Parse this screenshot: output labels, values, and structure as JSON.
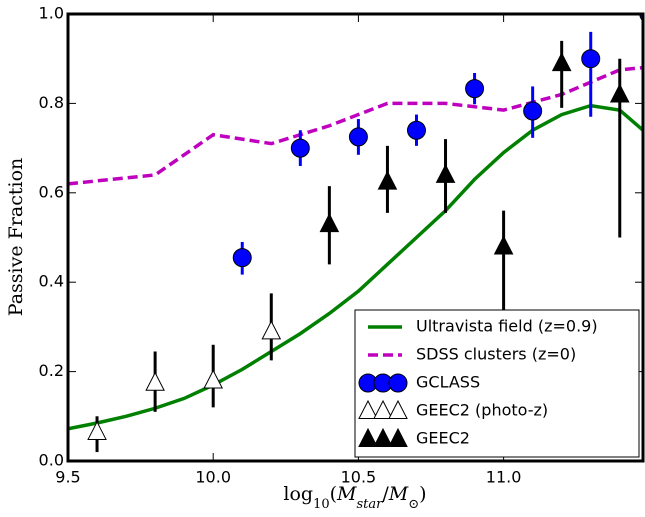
{
  "chart_data": {
    "type": "line",
    "xlabel": [
      "log",
      "10",
      "(",
      "M",
      "star",
      "/",
      "M",
      "⊙",
      ")"
    ],
    "ylabel": "Passive Fraction",
    "xlim": [
      9.5,
      11.48
    ],
    "ylim": [
      0,
      1.0
    ],
    "xticks": [
      9.5,
      {
        "value": 10.0,
        "label": "10.0"
      },
      10.5,
      {
        "value": 11.0,
        "label": "11.0"
      }
    ],
    "yticks": [
      {
        "value": 0,
        "label": "0.0"
      },
      0.2,
      0.4,
      0.6,
      0.8,
      {
        "value": 1.0,
        "label": "1.0"
      }
    ],
    "legend": "lower right",
    "series": [
      {
        "name": "Ultravista field (z=0.9)",
        "kind": "line",
        "color": "#008000",
        "linestyle": "solid",
        "x": [
          9.5,
          9.6,
          9.7,
          9.8,
          9.9,
          10.0,
          10.1,
          10.2,
          10.3,
          10.4,
          10.5,
          10.6,
          10.7,
          10.8,
          10.9,
          11.0,
          11.1,
          11.2,
          11.3,
          11.4,
          11.48
        ],
        "values": [
          0.072,
          0.085,
          0.1,
          0.118,
          0.14,
          0.17,
          0.205,
          0.245,
          0.285,
          0.33,
          0.38,
          0.44,
          0.5,
          0.56,
          0.63,
          0.69,
          0.74,
          0.775,
          0.795,
          0.785,
          0.74
        ]
      },
      {
        "name": "SDSS clusters (z=0)",
        "kind": "line",
        "color": "#bf00bf",
        "linestyle": "dashed",
        "x": [
          9.5,
          9.8,
          10.0,
          10.2,
          10.4,
          10.6,
          10.8,
          11.0,
          11.2,
          11.4,
          11.48
        ],
        "values": [
          0.62,
          0.64,
          0.73,
          0.71,
          0.75,
          0.8,
          0.8,
          0.785,
          0.82,
          0.875,
          0.88
        ]
      },
      {
        "name": "GCLASS",
        "kind": "errorbar",
        "marker": "circle",
        "color": "#0000ff",
        "x": [
          10.1,
          10.3,
          10.5,
          10.7,
          10.9,
          11.1,
          11.3,
          11.5
        ],
        "values": [
          0.455,
          0.7,
          0.725,
          0.74,
          0.833,
          0.783,
          0.9,
          1.0
        ],
        "err_low": [
          0.038,
          0.04,
          0.04,
          0.035,
          0.035,
          0.06,
          0.13,
          0
        ],
        "err_high": [
          0.035,
          0.04,
          0.04,
          0.035,
          0.035,
          0.055,
          0.06,
          0
        ]
      },
      {
        "name": "GEEC2 (photo-z)",
        "kind": "errorbar",
        "marker": "open-triangle",
        "color": "#000000",
        "x": [
          9.6,
          9.8,
          10.0,
          10.2
        ],
        "values": [
          0.065,
          0.175,
          0.18,
          0.29
        ],
        "err_low": [
          0.045,
          0.065,
          0.06,
          0.065
        ],
        "err_high": [
          0.035,
          0.07,
          0.08,
          0.085
        ]
      },
      {
        "name": "GEEC2",
        "kind": "errorbar",
        "marker": "filled-triangle",
        "color": "#000000",
        "x": [
          10.4,
          10.6,
          10.8,
          11.0,
          11.2,
          11.4
        ],
        "values": [
          0.53,
          0.625,
          0.64,
          0.48,
          0.89,
          0.82
        ],
        "err_low": [
          0.09,
          0.07,
          0.085,
          0.16,
          0.1,
          0.32
        ],
        "err_high": [
          0.085,
          0.08,
          0.08,
          0.08,
          0.05,
          0.08
        ]
      }
    ]
  }
}
